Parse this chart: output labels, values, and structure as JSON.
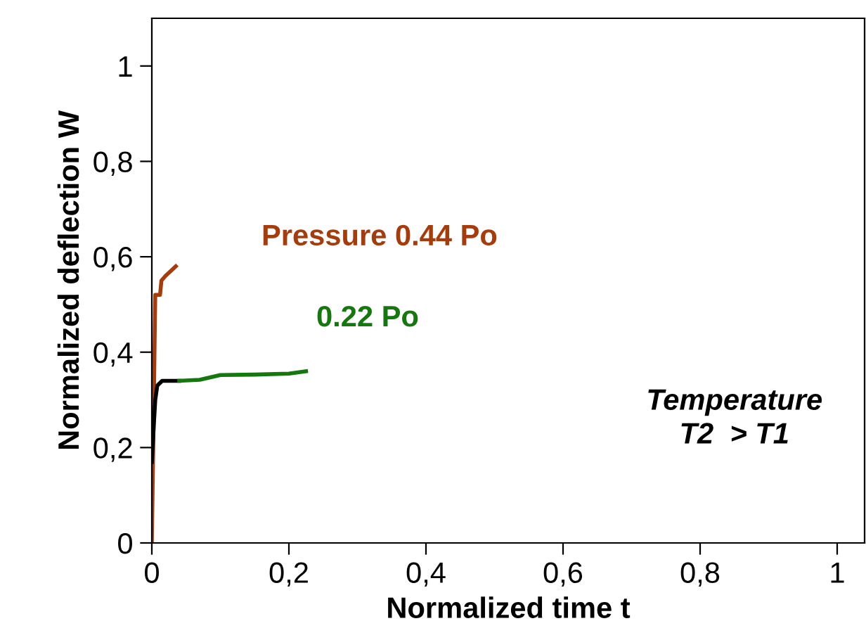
{
  "chart_data": {
    "type": "line",
    "xlabel": "Normalized time t",
    "ylabel": "Normalized deflection W",
    "series": [
      {
        "color": "#a63c0c",
        "x": [
          0,
          0.002,
          0.005,
          0.012,
          0.014,
          0.02,
          0.035
        ],
        "values": [
          0,
          0.2,
          0.52,
          0.52,
          0.55,
          0.56,
          0.58
        ]
      },
      {
        "color": "#000000",
        "x": [
          0,
          0.003,
          0.005,
          0.008,
          0.015,
          0.04
        ],
        "values": [
          0.17,
          0.25,
          0.3,
          0.33,
          0.34,
          0.34
        ]
      },
      {
        "color": "#15780f",
        "x": [
          0.04,
          0.07,
          0.1,
          0.15,
          0.2,
          0.225
        ],
        "values": [
          0.34,
          0.342,
          0.352,
          0.353,
          0.355,
          0.36
        ]
      }
    ],
    "annotations": [
      "Pressure 0.44 Po",
      "0.22 Po",
      "Temperature\nT2  > T1"
    ],
    "xlim": [
      0,
      1.04
    ],
    "ylim": [
      0,
      1.1
    ],
    "xticks": [
      0,
      {
        "value": 0.2,
        "label": "0,2"
      },
      {
        "value": 0.4,
        "label": "0,4"
      },
      {
        "value": 0.6,
        "label": "0,6"
      },
      {
        "value": 0.8,
        "label": "0,8"
      },
      1
    ],
    "yticks": [
      0,
      {
        "value": 0.2,
        "label": "0,2"
      },
      {
        "value": 0.4,
        "label": "0,4"
      },
      {
        "value": 0.6,
        "label": "0,6"
      },
      {
        "value": 0.8,
        "label": "0,8"
      },
      1
    ],
    "grid": false,
    "legend": false,
    "marker": "none",
    "line_style": "solid"
  }
}
